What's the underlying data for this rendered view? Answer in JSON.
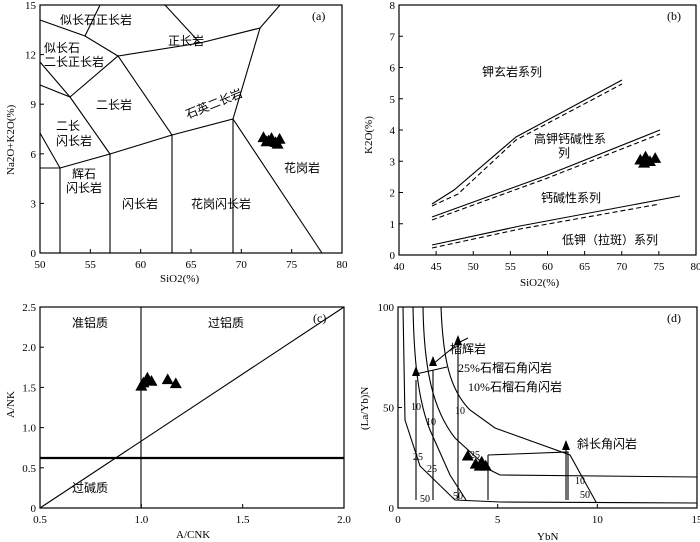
{
  "chart_data": [
    {
      "type": "scatter",
      "panel_label": "(a)",
      "xlabel": "SiO2(%)",
      "ylabel": "Na2O+K2O(%)",
      "xlim": [
        50,
        80
      ],
      "ylim": [
        0,
        15
      ],
      "x_ticks": [
        "50",
        "55",
        "60",
        "65",
        "70",
        "75",
        "80"
      ],
      "y_ticks": [
        "0",
        "3",
        "6",
        "9",
        "12",
        "15"
      ],
      "field_labels": [
        "似长石正长岩",
        "正长岩",
        "似长石",
        "二长正长岩",
        "二长岩",
        "石英二长岩",
        "二长",
        "闪长岩",
        "辉石",
        "闪长岩",
        "闪长岩",
        "花岗闪长岩",
        "花岗岩"
      ],
      "points": [
        {
          "x": 72.2,
          "y": 7.0
        },
        {
          "x": 72.7,
          "y": 6.8
        },
        {
          "x": 73.0,
          "y": 6.95
        },
        {
          "x": 73.4,
          "y": 6.7
        },
        {
          "x": 73.8,
          "y": 6.9
        },
        {
          "x": 72.5,
          "y": 6.75
        },
        {
          "x": 73.6,
          "y": 6.6
        }
      ]
    },
    {
      "type": "scatter",
      "panel_label": "(b)",
      "xlabel": "SiO2(%)",
      "ylabel": "K2O(%)",
      "xlim": [
        40,
        80
      ],
      "ylim": [
        0,
        8
      ],
      "x_ticks": [
        "40",
        "45",
        "50",
        "55",
        "60",
        "65",
        "70",
        "75",
        "80"
      ],
      "y_ticks": [
        "0",
        "1",
        "2",
        "3",
        "4",
        "5",
        "6",
        "7",
        "8"
      ],
      "series_labels": [
        "钾玄岩系列",
        "高钾钙碱性系",
        "列",
        "钙碱性系列",
        "低钾（拉斑）系列"
      ],
      "points": [
        {
          "x": 72.5,
          "y": 3.05
        },
        {
          "x": 73.2,
          "y": 3.15
        },
        {
          "x": 73.8,
          "y": 3.0
        },
        {
          "x": 74.5,
          "y": 3.1
        },
        {
          "x": 73.0,
          "y": 2.95
        }
      ]
    },
    {
      "type": "scatter",
      "panel_label": "(c)",
      "xlabel": "A/CNK",
      "ylabel": "A/NK",
      "xlim": [
        0.5,
        2.0
      ],
      "ylim": [
        0,
        2.5
      ],
      "x_ticks": [
        "0.5",
        "1.0",
        "1.5",
        "2.0"
      ],
      "y_ticks": [
        "0",
        "0.5",
        "1.0",
        "1.5",
        "2.0",
        "2.5"
      ],
      "field_labels": [
        "准铝质",
        "过铝质",
        "过碱质"
      ],
      "points": [
        {
          "x": 1.01,
          "y": 1.56
        },
        {
          "x": 1.03,
          "y": 1.62
        },
        {
          "x": 1.05,
          "y": 1.58
        },
        {
          "x": 1.13,
          "y": 1.6
        },
        {
          "x": 1.17,
          "y": 1.55
        },
        {
          "x": 1.0,
          "y": 1.52
        }
      ]
    },
    {
      "type": "scatter",
      "panel_label": "(d)",
      "xlabel": "YbN",
      "ylabel": "(La/Yb)N",
      "xlim": [
        0,
        15
      ],
      "ylim": [
        0,
        100
      ],
      "x_ticks": [
        "0",
        "5",
        "10",
        "15"
      ],
      "y_ticks": [
        "0",
        "50",
        "100"
      ],
      "curve_labels": [
        "榴辉岩",
        "25%石榴石角闪岩",
        "10%石榴石角闪岩",
        "斜长角闪岩"
      ],
      "melt_labels": [
        "10",
        "10",
        "10",
        "10",
        "25",
        "25",
        "25",
        "50",
        "50",
        "50"
      ],
      "points": [
        {
          "x": 3.5,
          "y": 26
        },
        {
          "x": 3.9,
          "y": 22
        },
        {
          "x": 4.1,
          "y": 21
        },
        {
          "x": 4.4,
          "y": 21
        },
        {
          "x": 4.2,
          "y": 23
        }
      ]
    }
  ]
}
